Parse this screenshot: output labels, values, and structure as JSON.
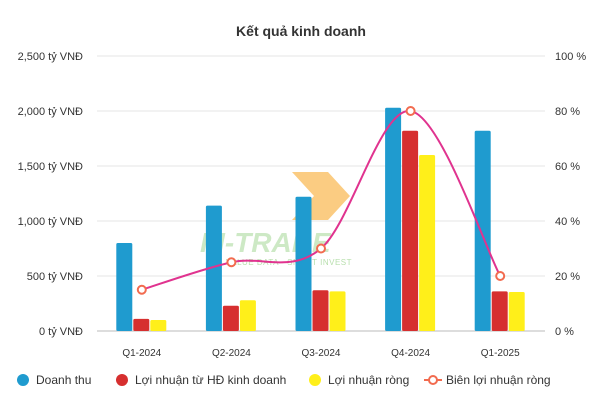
{
  "chart_data": {
    "type": "bar",
    "title": "Kết quả kinh doanh",
    "categories": [
      "Q1-2024",
      "Q2-2024",
      "Q3-2024",
      "Q4-2024",
      "Q1-2025"
    ],
    "series": [
      {
        "name": "Doanh thu",
        "type": "bar",
        "axis": "left",
        "color": "#1f9bcf",
        "values": [
          800,
          1140,
          1220,
          2030,
          1820
        ]
      },
      {
        "name": "Lợi nhuận từ HĐ kinh doanh",
        "type": "bar",
        "axis": "left",
        "color": "#d62f2f",
        "values": [
          110,
          230,
          370,
          1820,
          360
        ]
      },
      {
        "name": "Lợi nhuận ròng",
        "type": "bar",
        "axis": "left",
        "color": "#ffef1a",
        "values": [
          100,
          280,
          360,
          1600,
          355
        ]
      },
      {
        "name": "Biên lợi nhuận ròng",
        "type": "line",
        "axis": "right",
        "color": "#e0338f",
        "marker_color": "#f26b4f",
        "values": [
          15,
          25,
          30,
          80,
          20
        ]
      }
    ],
    "left_axis": {
      "min": 0,
      "max": 2500,
      "ticks": [
        "0 tỷ VNĐ",
        "500 tỷ VNĐ",
        "1,000 tỷ VNĐ",
        "1,500 tỷ VNĐ",
        "2,000 tỷ VNĐ",
        "2,500 tỷ VNĐ"
      ]
    },
    "right_axis": {
      "min": 0,
      "max": 100,
      "ticks": [
        "0 %",
        "20 %",
        "40 %",
        "60 %",
        "80 %",
        "100 %"
      ]
    },
    "grid": true,
    "legend_position": "bottom"
  },
  "watermark": {
    "text": "FI-TRADE",
    "tagline": "VALUE DATA - SMART INVEST"
  }
}
